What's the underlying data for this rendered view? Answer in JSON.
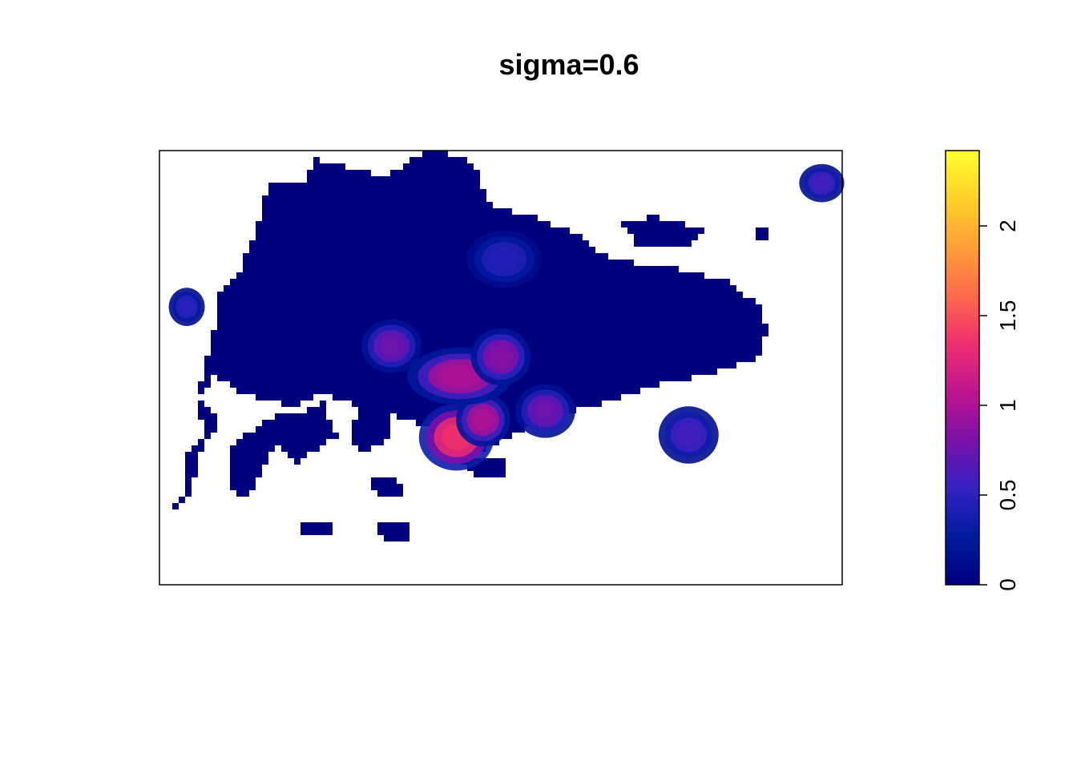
{
  "chart_data": {
    "type": "heatmap",
    "title": "sigma=0.6",
    "xlabel": "",
    "ylabel": "",
    "legend": {
      "position": "right",
      "orientation": "vertical",
      "zlim": [
        0,
        2.42
      ],
      "ticks": [
        0,
        0.5,
        1,
        1.5,
        2
      ],
      "tick_labels": [
        "0",
        "0.5",
        "1",
        "1.5",
        "2"
      ],
      "colors": [
        "#00007F",
        "#001A9E",
        "#3322C4",
        "#7A10A8",
        "#C0148E",
        "#EE2F6E",
        "#FF6A4D",
        "#FF9E37",
        "#FFD028",
        "#FFFF2E"
      ]
    },
    "axes_shown": false,
    "hotspots": [
      {
        "x": 0.435,
        "y": 0.66,
        "value": 1.35,
        "sx": 0.025,
        "sy": 0.035
      },
      {
        "x": 0.474,
        "y": 0.62,
        "value": 1.0,
        "sx": 0.018,
        "sy": 0.028
      },
      {
        "x": 0.34,
        "y": 0.45,
        "value": 0.75,
        "sx": 0.02,
        "sy": 0.028
      },
      {
        "x": 0.44,
        "y": 0.52,
        "value": 1.0,
        "sx": 0.035,
        "sy": 0.03
      },
      {
        "x": 0.5,
        "y": 0.475,
        "value": 0.85,
        "sx": 0.02,
        "sy": 0.03
      },
      {
        "x": 0.565,
        "y": 0.6,
        "value": 0.75,
        "sx": 0.02,
        "sy": 0.028
      },
      {
        "x": 0.505,
        "y": 0.25,
        "value": 0.45,
        "sx": 0.025,
        "sy": 0.03
      },
      {
        "x": 0.775,
        "y": 0.655,
        "value": 0.6,
        "sx": 0.02,
        "sy": 0.03
      },
      {
        "x": 0.97,
        "y": 0.075,
        "value": 0.6,
        "sx": 0.015,
        "sy": 0.02
      },
      {
        "x": 0.04,
        "y": 0.36,
        "value": 0.5,
        "sx": 0.012,
        "sy": 0.02
      }
    ]
  }
}
